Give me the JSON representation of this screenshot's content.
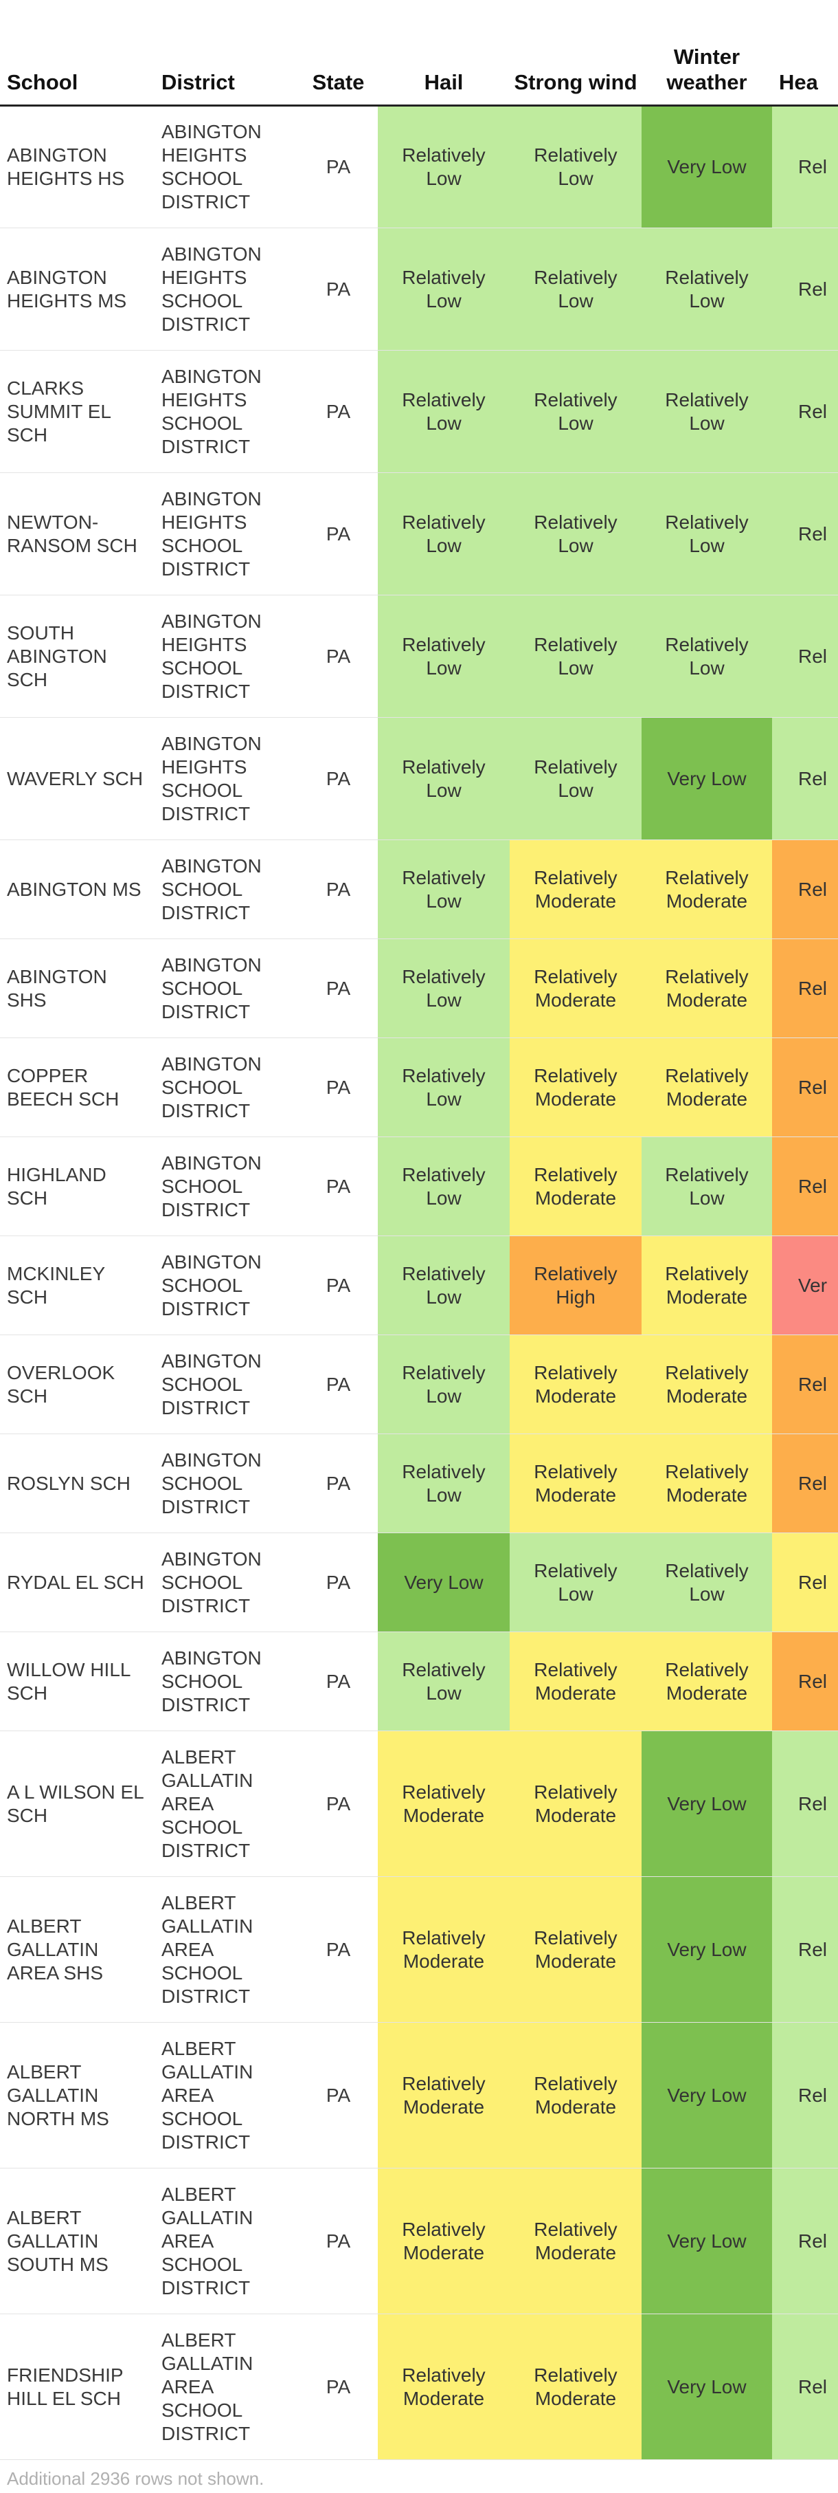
{
  "table": {
    "columns": [
      "School",
      "District",
      "State",
      "Hail",
      "Strong wind",
      "Winter weather",
      "Hea"
    ],
    "rows": [
      {
        "school": "ABINGTON HEIGHTS HS",
        "district": "ABINGTON HEIGHTS SCHOOL DISTRICT",
        "state": "PA",
        "hail": "Relatively Low",
        "wind": "Relatively Low",
        "winter": "Very Low",
        "heat": "Rel"
      },
      {
        "school": "ABINGTON HEIGHTS MS",
        "district": "ABINGTON HEIGHTS SCHOOL DISTRICT",
        "state": "PA",
        "hail": "Relatively Low",
        "wind": "Relatively Low",
        "winter": "Relatively Low",
        "heat": "Rel"
      },
      {
        "school": "CLARKS SUMMIT EL SCH",
        "district": "ABINGTON HEIGHTS SCHOOL DISTRICT",
        "state": "PA",
        "hail": "Relatively Low",
        "wind": "Relatively Low",
        "winter": "Relatively Low",
        "heat": "Rel"
      },
      {
        "school": "NEWTON-RANSOM SCH",
        "district": "ABINGTON HEIGHTS SCHOOL DISTRICT",
        "state": "PA",
        "hail": "Relatively Low",
        "wind": "Relatively Low",
        "winter": "Relatively Low",
        "heat": "Rel"
      },
      {
        "school": "SOUTH ABINGTON SCH",
        "district": "ABINGTON HEIGHTS SCHOOL DISTRICT",
        "state": "PA",
        "hail": "Relatively Low",
        "wind": "Relatively Low",
        "winter": "Relatively Low",
        "heat": "Rel"
      },
      {
        "school": "WAVERLY SCH",
        "district": "ABINGTON HEIGHTS SCHOOL DISTRICT",
        "state": "PA",
        "hail": "Relatively Low",
        "wind": "Relatively Low",
        "winter": "Very Low",
        "heat": "Rel"
      },
      {
        "school": "ABINGTON MS",
        "district": "ABINGTON SCHOOL DISTRICT",
        "state": "PA",
        "hail": "Relatively Low",
        "wind": "Relatively Moderate",
        "winter": "Relatively Moderate",
        "heat": "Rel"
      },
      {
        "school": "ABINGTON SHS",
        "district": "ABINGTON SCHOOL DISTRICT",
        "state": "PA",
        "hail": "Relatively Low",
        "wind": "Relatively Moderate",
        "winter": "Relatively Moderate",
        "heat": "Rel"
      },
      {
        "school": "COPPER BEECH SCH",
        "district": "ABINGTON SCHOOL DISTRICT",
        "state": "PA",
        "hail": "Relatively Low",
        "wind": "Relatively Moderate",
        "winter": "Relatively Moderate",
        "heat": "Rel"
      },
      {
        "school": "HIGHLAND SCH",
        "district": "ABINGTON SCHOOL DISTRICT",
        "state": "PA",
        "hail": "Relatively Low",
        "wind": "Relatively Moderate",
        "winter": "Relatively Low",
        "heat": "Rel"
      },
      {
        "school": "MCKINLEY SCH",
        "district": "ABINGTON SCHOOL DISTRICT",
        "state": "PA",
        "hail": "Relatively Low",
        "wind": "Relatively High",
        "winter": "Relatively Moderate",
        "heat": "Ver"
      },
      {
        "school": "OVERLOOK SCH",
        "district": "ABINGTON SCHOOL DISTRICT",
        "state": "PA",
        "hail": "Relatively Low",
        "wind": "Relatively Moderate",
        "winter": "Relatively Moderate",
        "heat": "Rel"
      },
      {
        "school": "ROSLYN SCH",
        "district": "ABINGTON SCHOOL DISTRICT",
        "state": "PA",
        "hail": "Relatively Low",
        "wind": "Relatively Moderate",
        "winter": "Relatively Moderate",
        "heat": "Rel"
      },
      {
        "school": "RYDAL EL SCH",
        "district": "ABINGTON SCHOOL DISTRICT",
        "state": "PA",
        "hail": "Very Low",
        "wind": "Relatively Low",
        "winter": "Relatively Low",
        "heat": "Rel"
      },
      {
        "school": "WILLOW HILL SCH",
        "district": "ABINGTON SCHOOL DISTRICT",
        "state": "PA",
        "hail": "Relatively Low",
        "wind": "Relatively Moderate",
        "winter": "Relatively Moderate",
        "heat": "Rel"
      },
      {
        "school": "A L WILSON EL SCH",
        "district": "ALBERT GALLATIN AREA SCHOOL DISTRICT",
        "state": "PA",
        "hail": "Relatively Moderate",
        "wind": "Relatively Moderate",
        "winter": "Very Low",
        "heat": "Rel"
      },
      {
        "school": "ALBERT GALLATIN AREA SHS",
        "district": "ALBERT GALLATIN AREA SCHOOL DISTRICT",
        "state": "PA",
        "hail": "Relatively Moderate",
        "wind": "Relatively Moderate",
        "winter": "Very Low",
        "heat": "Rel"
      },
      {
        "school": "ALBERT GALLATIN NORTH MS",
        "district": "ALBERT GALLATIN AREA SCHOOL DISTRICT",
        "state": "PA",
        "hail": "Relatively Moderate",
        "wind": "Relatively Moderate",
        "winter": "Very Low",
        "heat": "Rel"
      },
      {
        "school": "ALBERT GALLATIN SOUTH MS",
        "district": "ALBERT GALLATIN AREA SCHOOL DISTRICT",
        "state": "PA",
        "hail": "Relatively Moderate",
        "wind": "Relatively Moderate",
        "winter": "Very Low",
        "heat": "Rel"
      },
      {
        "school": "FRIENDSHIP HILL EL SCH",
        "district": "ALBERT GALLATIN AREA SCHOOL DISTRICT",
        "state": "PA",
        "hail": "Relatively Moderate",
        "wind": "Relatively Moderate",
        "winter": "Very Low",
        "heat": "Rel"
      }
    ],
    "heat_levels": [
      "Relatively Low",
      "Relatively Low",
      "Relatively Low",
      "Relatively Low",
      "Relatively Low",
      "Relatively Low",
      "Relatively High",
      "Relatively High",
      "Relatively High",
      "Relatively High",
      "Very High",
      "Relatively High",
      "Relatively High",
      "Relatively Moderate",
      "Relatively High",
      "Relatively Low",
      "Relatively Low",
      "Relatively Low",
      "Relatively Low",
      "Relatively Low"
    ]
  },
  "risk_colors": {
    "Very Low": "#7dc050",
    "Relatively Low": "#bfeb9e",
    "Relatively Moderate": "#fdf074",
    "Relatively High": "#fdae4b",
    "Very High": "#fb8a82"
  },
  "footnote": "Additional 2936 rows not shown."
}
